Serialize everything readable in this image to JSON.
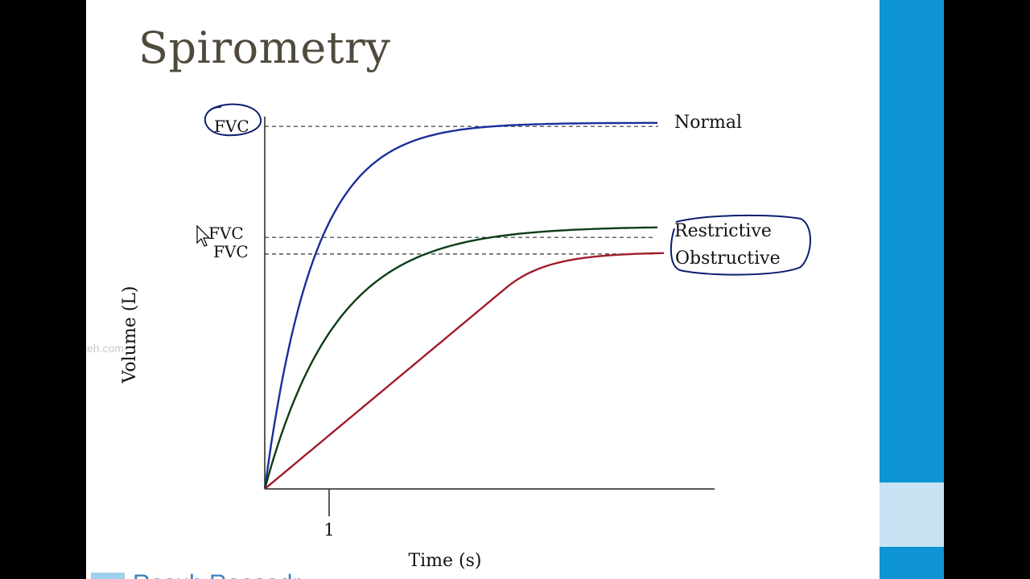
{
  "slide": {
    "title": "Spirometry",
    "watermark_fragment": "eh.com",
    "footer_fragment": "Resuh Reesedr"
  },
  "colors": {
    "accent": "#0e93d3",
    "accent_light": "#c7e3f4",
    "title": "#4f4a3c",
    "annotation_ink": "#0a1e6e"
  },
  "chart_data": {
    "type": "line",
    "title": "",
    "xlabel": "Time (s)",
    "ylabel": "Volume (L)",
    "xlim": [
      0,
      6.1
    ],
    "ylim": [
      0,
      10
    ],
    "x_ticks": [
      1
    ],
    "x_tick_labels": [
      "1"
    ],
    "grid": false,
    "series": [
      {
        "name": "Normal",
        "color": "#1a2f9c",
        "shape": "exp",
        "plateau": 9.9,
        "k": 1.3,
        "end_x": 6.1
      },
      {
        "name": "Restrictive",
        "color": "#0d3d14",
        "shape": "exp",
        "plateau": 7.1,
        "k": 0.9,
        "end_x": 6.1
      },
      {
        "name": "Obstructive",
        "color": "#a01c2c",
        "shape": "linear-plateau",
        "slope": 1.45,
        "plateau": 6.4,
        "end_x": 6.2
      }
    ],
    "reference_lines": [
      {
        "label": "FVC",
        "y": 9.8,
        "style": "dashed"
      },
      {
        "label": "FVC",
        "y": 6.8,
        "style": "dashed"
      },
      {
        "label": "FVC",
        "y": 6.35,
        "style": "dashed"
      }
    ],
    "annotations": [
      {
        "type": "handwritten-circle",
        "target": "FVC (Normal)"
      },
      {
        "type": "handwritten-circle",
        "target": "Restrictive / Obstructive labels"
      },
      {
        "type": "mouse-cursor",
        "near": "FVC (Restrictive)"
      }
    ]
  }
}
